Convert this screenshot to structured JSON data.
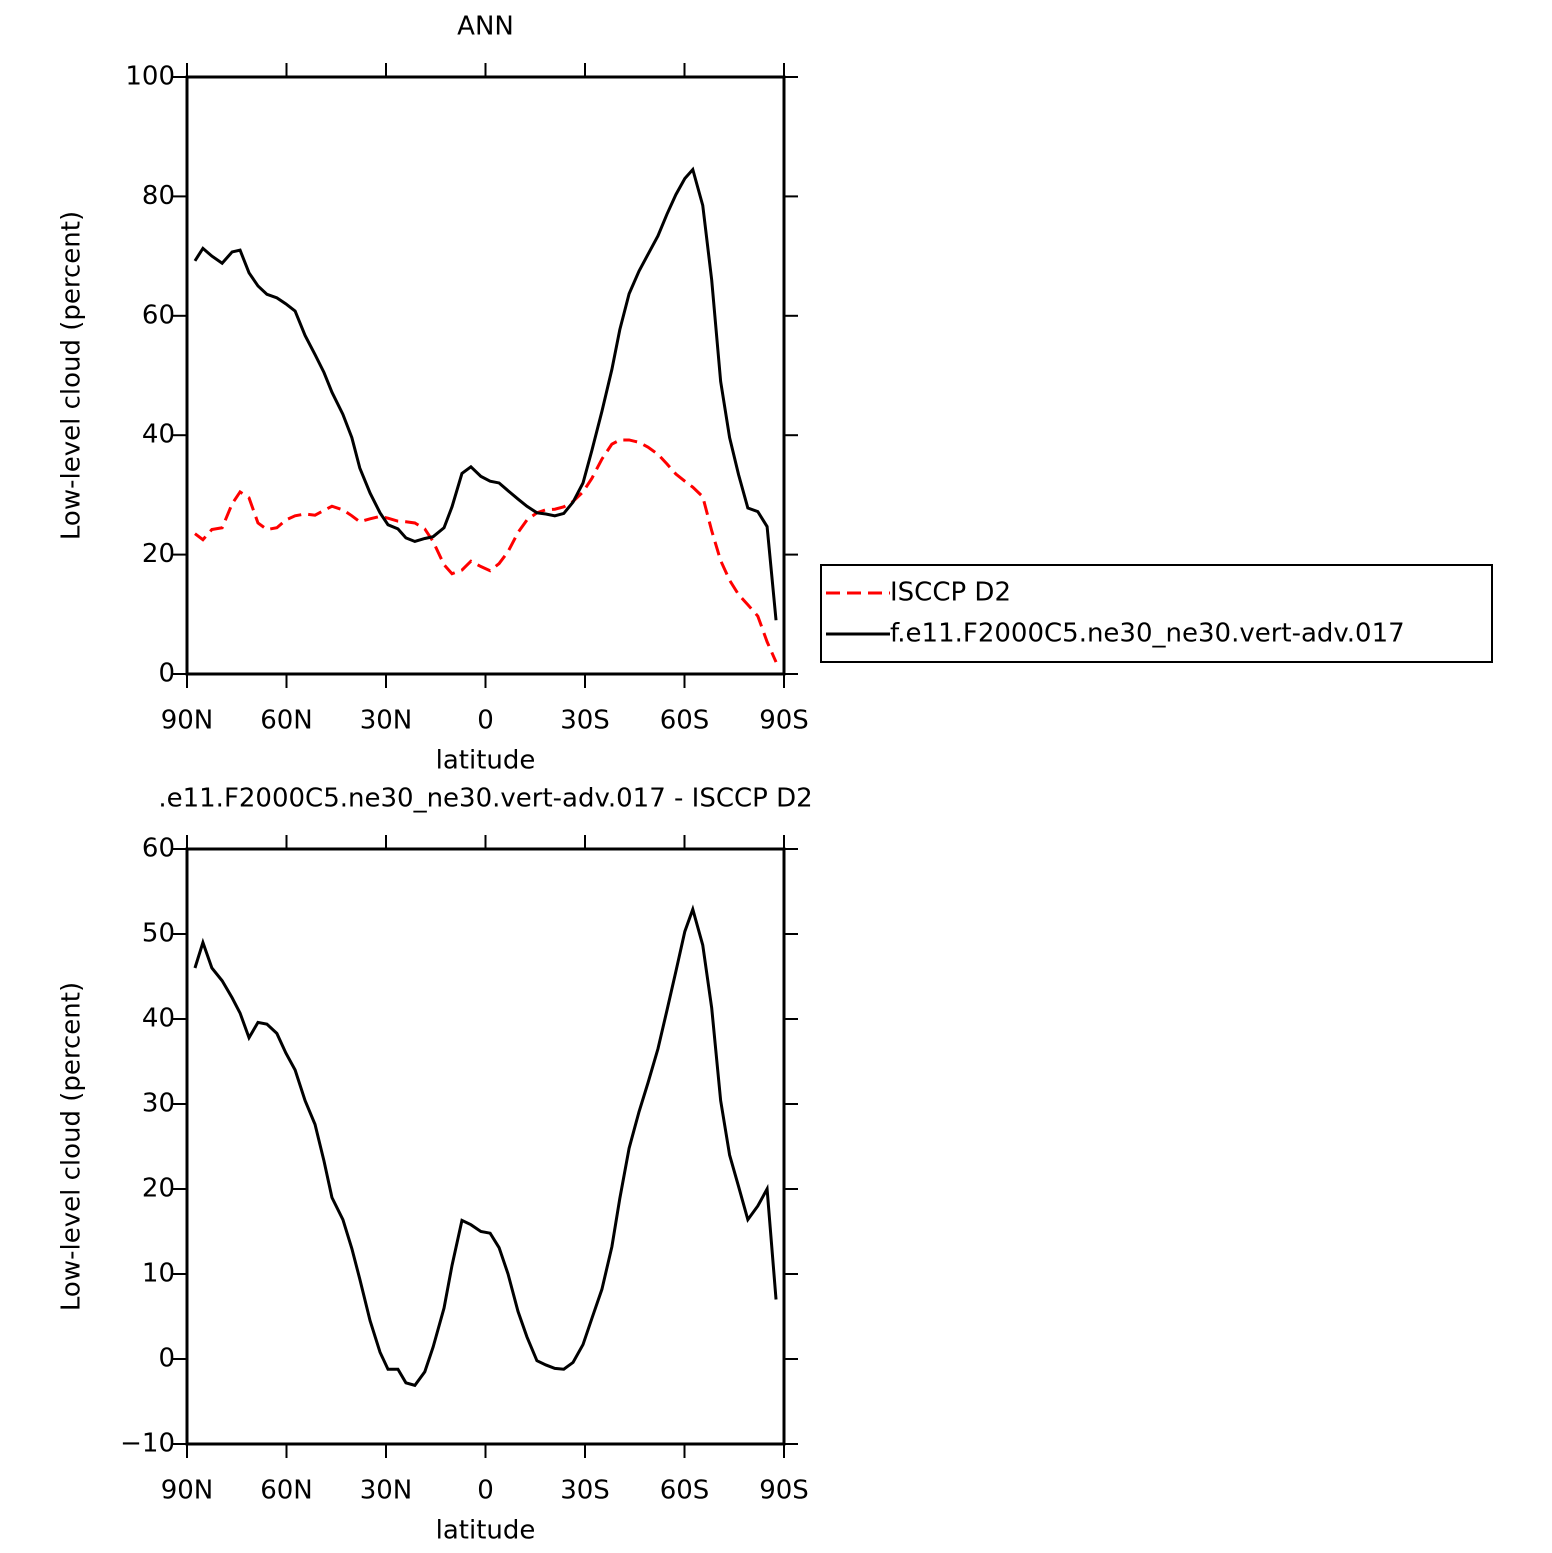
{
  "chart_data": [
    {
      "type": "line",
      "title": "ANN",
      "xlabel": "latitude",
      "ylabel": "Low-level cloud (percent)",
      "x": [
        87.6,
        85.2,
        82.5,
        79.4,
        76.4,
        74,
        71.3,
        68.6,
        65.9,
        62.9,
        60.2,
        57.4,
        54.4,
        51.4,
        48.7,
        46.3,
        43,
        40.3,
        37.9,
        34.8,
        31.8,
        29.4,
        26.4,
        24,
        21.3,
        18.3,
        15.8,
        12.5,
        10.1,
        7.1,
        4.4,
        1.4,
        -1.4,
        -4.1,
        -6.8,
        -9.8,
        -12.5,
        -15.5,
        -18.2,
        -20.9,
        -23.6,
        -26.4,
        -29.4,
        -32.1,
        -35.1,
        -38.1,
        -40.5,
        -43.3,
        -46.3,
        -49,
        -52,
        -54.7,
        -57.4,
        -60.1,
        -62.5,
        -65.5,
        -68.2,
        -70.9,
        -73.6,
        -76.3,
        -79.1,
        -82.1,
        -84.9,
        -87.6
      ],
      "series": [
        {
          "name": "ISCCP D2",
          "color": "#ff0000",
          "style": "dashed",
          "values": [
            23.5,
            22.5,
            24.2,
            24.5,
            28.5,
            30.5,
            29.5,
            25.3,
            24.2,
            24.5,
            25.8,
            26.5,
            26.8,
            26.6,
            27.4,
            28.1,
            27.5,
            26.5,
            25.5,
            26,
            26.4,
            26.1,
            25.6,
            25.5,
            25.3,
            24.3,
            22.2,
            18.3,
            16.8,
            17.4,
            18.9,
            18,
            17.3,
            18.5,
            20.5,
            23.7,
            25.8,
            27,
            27.5,
            27.6,
            28,
            28.9,
            30.5,
            32.8,
            36,
            38.5,
            39.2,
            39.2,
            38.8,
            38,
            36.8,
            35.2,
            33.5,
            32.3,
            31.3,
            29.7,
            24,
            19,
            15.7,
            13.3,
            11.6,
            9.7,
            5.4,
            2
          ]
        },
        {
          "name": "f.e11.F2000C5.ne30_ne30.vert-adv.017",
          "color": "#000000",
          "style": "solid",
          "values": [
            69.2,
            71.3,
            70,
            68.8,
            70.7,
            71,
            67.2,
            65,
            63.6,
            63,
            62,
            60.8,
            56.7,
            53.5,
            50.5,
            47.2,
            43.5,
            39.6,
            34.5,
            30.3,
            27,
            25,
            24.3,
            22.8,
            22.2,
            22.7,
            23,
            24.5,
            28,
            33.6,
            34.7,
            33.1,
            32.3,
            32,
            30.7,
            29.3,
            28.1,
            27,
            26.8,
            26.5,
            26.9,
            28.8,
            32,
            37.5,
            44,
            51,
            57.7,
            63.7,
            67.5,
            70.3,
            73.4,
            77,
            80.3,
            83,
            84.5,
            78.5,
            66,
            49,
            39.6,
            33.4,
            27.8,
            27.2,
            24.7,
            9
          ]
        }
      ],
      "xlim": [
        90,
        -90
      ],
      "xticks": [
        {
          "value": 90,
          "label": "90N"
        },
        {
          "value": 60,
          "label": "60N"
        },
        {
          "value": 30,
          "label": "30N"
        },
        0,
        {
          "value": -30,
          "label": "30S"
        },
        {
          "value": -60,
          "label": "60S"
        },
        {
          "value": -90,
          "label": "90S"
        }
      ],
      "ylim": [
        0,
        100
      ],
      "yticks": [
        0,
        20,
        40,
        60,
        80,
        100
      ],
      "legend": "right"
    },
    {
      "type": "line",
      "title": ".e11.F2000C5.ne30_ne30.vert-adv.017 - ISCCP D2",
      "xlabel": "latitude",
      "ylabel": "Low-level cloud (percent)",
      "x": [
        87.6,
        85.2,
        82.5,
        79.4,
        76.4,
        74,
        71.3,
        68.6,
        65.9,
        62.9,
        60.2,
        57.4,
        54.4,
        51.4,
        48.7,
        46.3,
        43,
        40.3,
        37.9,
        34.8,
        31.8,
        29.4,
        26.4,
        24,
        21.3,
        18.3,
        15.8,
        12.5,
        10.1,
        7.1,
        4.4,
        1.4,
        -1.4,
        -4.1,
        -6.8,
        -9.8,
        -12.5,
        -15.5,
        -18.2,
        -20.9,
        -23.6,
        -26.4,
        -29.4,
        -32.1,
        -35.1,
        -38.1,
        -40.5,
        -43.3,
        -46.3,
        -49,
        -52,
        -54.7,
        -57.4,
        -60.1,
        -62.5,
        -65.5,
        -68.2,
        -70.9,
        -73.6,
        -76.3,
        -79.1,
        -82.1,
        -84.9,
        -87.6
      ],
      "values": [
        46,
        49,
        46,
        44.5,
        42.5,
        40.7,
        37.8,
        39.6,
        39.4,
        38.3,
        36,
        34,
        30.4,
        27.6,
        23.3,
        19,
        16.4,
        13,
        9.4,
        4.5,
        0.8,
        -1.2,
        -1.2,
        -2.8,
        -3.1,
        -1.5,
        1.4,
        6,
        11,
        16.3,
        15.8,
        15,
        14.8,
        13.1,
        10,
        5.6,
        2.6,
        -0.2,
        -0.7,
        -1.1,
        -1.2,
        -0.4,
        1.7,
        4.8,
        8.2,
        13.2,
        18.9,
        24.8,
        29.1,
        32.5,
        36.5,
        41,
        45.6,
        50.3,
        52.9,
        48.7,
        41.3,
        30.4,
        24,
        20.3,
        16.4,
        18,
        20,
        7
      ],
      "color": "#000000",
      "xlim": [
        90,
        -90
      ],
      "xticks": [
        {
          "value": 90,
          "label": "90N"
        },
        {
          "value": 60,
          "label": "60N"
        },
        {
          "value": 30,
          "label": "30N"
        },
        0,
        {
          "value": -30,
          "label": "30S"
        },
        {
          "value": -60,
          "label": "60S"
        },
        {
          "value": -90,
          "label": "90S"
        }
      ],
      "ylim": [
        -10,
        60
      ],
      "yticks": [
        {
          "value": -10,
          "label": "−10"
        },
        0,
        10,
        20,
        30,
        40,
        50,
        60
      ]
    }
  ]
}
